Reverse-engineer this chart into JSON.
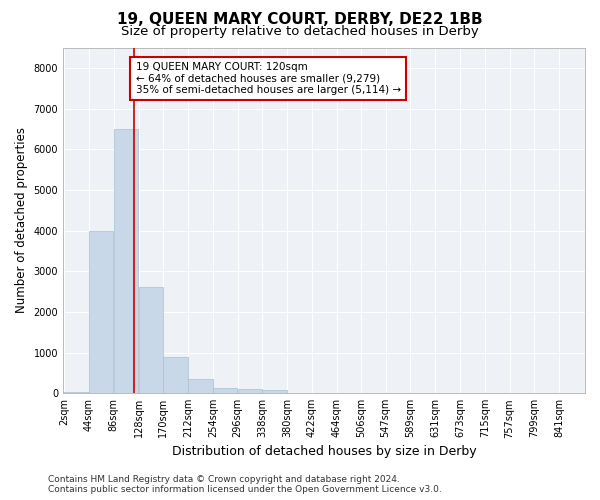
{
  "title": "19, QUEEN MARY COURT, DERBY, DE22 1BB",
  "subtitle": "Size of property relative to detached houses in Derby",
  "xlabel": "Distribution of detached houses by size in Derby",
  "ylabel": "Number of detached properties",
  "bar_color": "#c8d8e8",
  "bar_edgecolor": "#a8bfcc",
  "annotation_box_color": "#cc0000",
  "annotation_line_color": "#cc0000",
  "property_line_x": 120,
  "annotation_text_line1": "19 QUEEN MARY COURT: 120sqm",
  "annotation_text_line2": "← 64% of detached houses are smaller (9,279)",
  "annotation_text_line3": "35% of semi-detached houses are larger (5,114) →",
  "footer_line1": "Contains HM Land Registry data © Crown copyright and database right 2024.",
  "footer_line2": "Contains public sector information licensed under the Open Government Licence v3.0.",
  "bin_labels": [
    "2sqm",
    "44sqm",
    "86sqm",
    "128sqm",
    "170sqm",
    "212sqm",
    "254sqm",
    "296sqm",
    "338sqm",
    "380sqm",
    "422sqm",
    "464sqm",
    "506sqm",
    "547sqm",
    "589sqm",
    "631sqm",
    "673sqm",
    "715sqm",
    "757sqm",
    "799sqm",
    "841sqm"
  ],
  "bin_edges": [
    2,
    44,
    86,
    128,
    170,
    212,
    254,
    296,
    338,
    380,
    422,
    464,
    506,
    547,
    589,
    631,
    673,
    715,
    757,
    799,
    841
  ],
  "bar_heights": [
    35,
    4000,
    6500,
    2600,
    900,
    350,
    130,
    110,
    75,
    0,
    0,
    0,
    0,
    0,
    0,
    0,
    0,
    0,
    0,
    0
  ],
  "ylim": [
    0,
    8500
  ],
  "yticks": [
    0,
    1000,
    2000,
    3000,
    4000,
    5000,
    6000,
    7000,
    8000
  ],
  "background_color": "#eef2f7",
  "grid_color": "#ffffff",
  "title_fontsize": 11,
  "subtitle_fontsize": 9.5,
  "axis_label_fontsize": 8.5,
  "tick_fontsize": 7,
  "footer_fontsize": 6.5,
  "annotation_fontsize": 7.5
}
